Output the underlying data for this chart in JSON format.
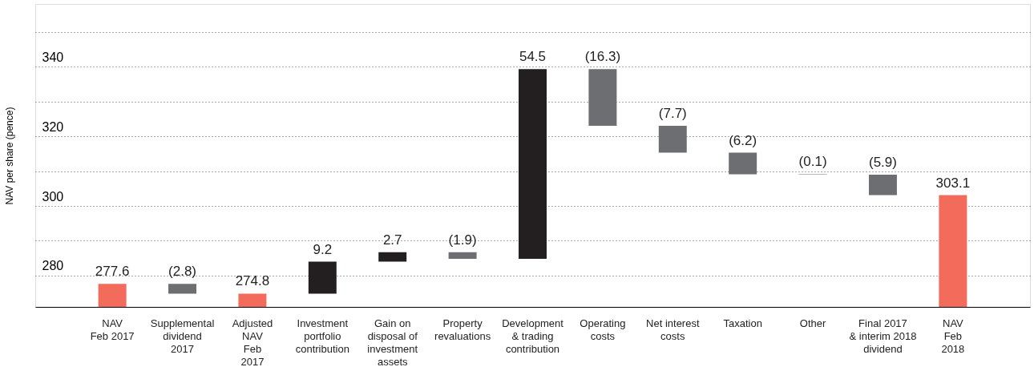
{
  "chart_data": {
    "type": "bar",
    "ylabel": "NAV per share (pence)",
    "categories": [
      "NAV\nFeb 2017",
      "Supplemental\ndividend\n2017",
      "Adjusted\nNAV\nFeb\n2017",
      "Investment\nportfolio\ncontribution",
      "Gain on\ndisposal of\ninvestment\nassets",
      "Property\nrevaluations",
      "Development\n& trading\ncontribution",
      "Operating\ncosts",
      "Net interest\ncosts",
      "Taxation",
      "Other",
      "Final 2017\n& interim 2018\ndividend",
      "NAV\nFeb\n2018"
    ],
    "values": [
      277.6,
      -2.8,
      274.8,
      9.2,
      2.7,
      -1.9,
      54.5,
      -16.3,
      -7.7,
      -6.2,
      -0.1,
      -5.9,
      303.1
    ],
    "base": [
      null,
      277.6,
      null,
      274.8,
      284.0,
      286.7,
      284.8,
      339.3,
      323.0,
      315.3,
      309.1,
      309.0,
      null
    ],
    "value_labels": [
      "277.6",
      "(2.8)",
      "274.8",
      "9.2",
      "2.7",
      "(1.9)",
      "54.5",
      "(16.3)",
      "(7.7)",
      "(6.2)",
      "(0.1)",
      "(5.9)",
      "303.1"
    ],
    "colors": [
      "#f26b5b",
      "#6d6e71",
      "#f26b5b",
      "#231f20",
      "#231f20",
      "#6d6e71",
      "#231f20",
      "#6d6e71",
      "#6d6e71",
      "#6d6e71",
      "#6d6e71",
      "#6d6e71",
      "#f26b5b"
    ],
    "ylim": [
      271,
      358
    ],
    "yticks": [
      280,
      {
        "value": 290,
        "label": null
      },
      300,
      {
        "value": 310,
        "label": null
      },
      320,
      {
        "value": 330,
        "label": null
      },
      340,
      {
        "value": 350,
        "label": null
      }
    ],
    "grid": "y"
  }
}
